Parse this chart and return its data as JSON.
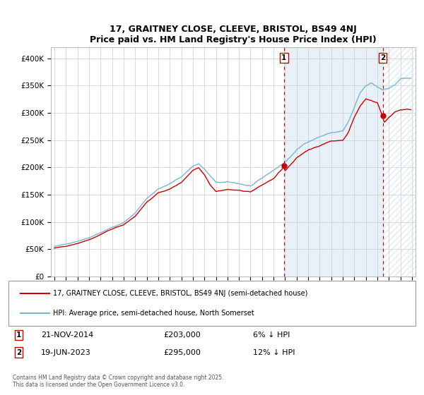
{
  "title": "17, GRAITNEY CLOSE, CLEEVE, BRISTOL, BS49 4NJ",
  "subtitle": "Price paid vs. HM Land Registry's House Price Index (HPI)",
  "ylim": [
    0,
    420000
  ],
  "yticks": [
    0,
    50000,
    100000,
    150000,
    200000,
    250000,
    300000,
    350000,
    400000
  ],
  "ytick_labels": [
    "£0",
    "£50K",
    "£100K",
    "£150K",
    "£200K",
    "£250K",
    "£300K",
    "£350K",
    "£400K"
  ],
  "xlim": [
    1994.7,
    2026.3
  ],
  "xticks": [
    1995,
    1996,
    1997,
    1998,
    1999,
    2000,
    2001,
    2002,
    2003,
    2004,
    2005,
    2006,
    2007,
    2008,
    2009,
    2010,
    2011,
    2012,
    2013,
    2014,
    2015,
    2016,
    2017,
    2018,
    2019,
    2020,
    2021,
    2022,
    2023,
    2024,
    2025,
    2026
  ],
  "hpi_color": "#7ab3d4",
  "price_color": "#cc0000",
  "vline_color": "#cc0000",
  "marker1_x": 2014.9,
  "marker2_x": 2023.47,
  "marker1_label": "1",
  "marker2_label": "2",
  "sale1_price_y": 203000,
  "sale2_price_y": 295000,
  "sale1_date": "21-NOV-2014",
  "sale1_price": "£203,000",
  "sale1_note": "6% ↓ HPI",
  "sale2_date": "19-JUN-2023",
  "sale2_price": "£295,000",
  "sale2_note": "12% ↓ HPI",
  "legend_line1": "17, GRAITNEY CLOSE, CLEEVE, BRISTOL, BS49 4NJ (semi-detached house)",
  "legend_line2": "HPI: Average price, semi-detached house, North Somerset",
  "footer": "Contains HM Land Registry data © Crown copyright and database right 2025.\nThis data is licensed under the Open Government Licence v3.0.",
  "background_color": "#ffffff",
  "grid_color": "#cccccc",
  "shade_fill_color": "#ddeef8",
  "hatch_color": "#c8dff0"
}
